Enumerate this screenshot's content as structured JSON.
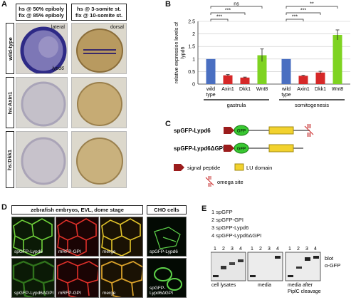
{
  "panel_labels": {
    "a": "A",
    "b": "B",
    "c": "C",
    "d": "D",
    "e": "E"
  },
  "panel_a": {
    "col_headers": [
      [
        "hs @ 50% epiboly",
        "fix @ 85% epiboly"
      ],
      [
        "hs @ 3-somite st.",
        "fix @ 10-somite st."
      ]
    ],
    "row_labels": [
      "wild-type",
      "hs:Axin1",
      "hs:Dkk1"
    ],
    "annot_lateral": "lateral",
    "annot_dorsal": "dorsal",
    "annot_gene": "lypd6"
  },
  "chart_data": {
    "type": "bar",
    "ylabel": "relative expression levels of lypd6",
    "ylim": [
      0,
      2.5
    ],
    "yticks": [
      "0",
      "0.5",
      "1",
      "1.5",
      "2",
      "2.5"
    ],
    "groups": [
      {
        "name": "gastrula",
        "bars": [
          {
            "label": "wild type",
            "value": 1.0,
            "err": 0,
            "color": "#4a6fc1"
          },
          {
            "label": "Axin1",
            "value": 0.35,
            "err": 0.03,
            "color": "#d62828"
          },
          {
            "label": "Dkk1",
            "value": 0.26,
            "err": 0.02,
            "color": "#d62828"
          },
          {
            "label": "Wnt8",
            "value": 1.15,
            "err": 0.25,
            "color": "#7ed321"
          }
        ]
      },
      {
        "name": "somitogenesis",
        "bars": [
          {
            "label": "wild type",
            "value": 1.0,
            "err": 0,
            "color": "#4a6fc1"
          },
          {
            "label": "Axin1",
            "value": 0.33,
            "err": 0.02,
            "color": "#d62828"
          },
          {
            "label": "Dkk1",
            "value": 0.46,
            "err": 0.05,
            "color": "#d62828"
          },
          {
            "label": "Wnt8",
            "value": 1.96,
            "err": 0.2,
            "color": "#7ed321"
          }
        ]
      }
    ],
    "significance": {
      "gastrula": [
        "***",
        "***",
        "ns"
      ],
      "somitogenesis": [
        "***",
        "***",
        "**"
      ]
    }
  },
  "panel_c": {
    "construct1": "spGFP-Lypd6",
    "construct2": "spGFP-Lypd6ΔGPI",
    "gfp": "GFP",
    "legend": {
      "signal": "signal peptide",
      "lu": "LU domain",
      "omega": "omega site"
    }
  },
  "panel_d": {
    "header_left": "zebrafish embryos, EVL, dome stage",
    "header_right": "CHO cells",
    "row1": [
      "spGFP-Lypd6",
      "mRFP-GPI",
      "merge",
      "spGFP-Lypd6"
    ],
    "row2": [
      "spGFP-Lypd6ΔGPI",
      "mRFP-GPI",
      "merge",
      "spGFP-Lypd6ΔGPI"
    ]
  },
  "panel_e": {
    "legend": [
      "1 spGFP",
      "2 spGFP-GPI",
      "3 spGFP-Lypd6",
      "4 spGFP-Lypd6ΔGPI"
    ],
    "lanes": [
      "1",
      "2",
      "3",
      "4"
    ],
    "blot_label_1": "blot",
    "blot_label_2": "α-GFP",
    "captions": [
      "cell lysates",
      "media",
      "media after",
      "PiplC cleavage"
    ]
  }
}
